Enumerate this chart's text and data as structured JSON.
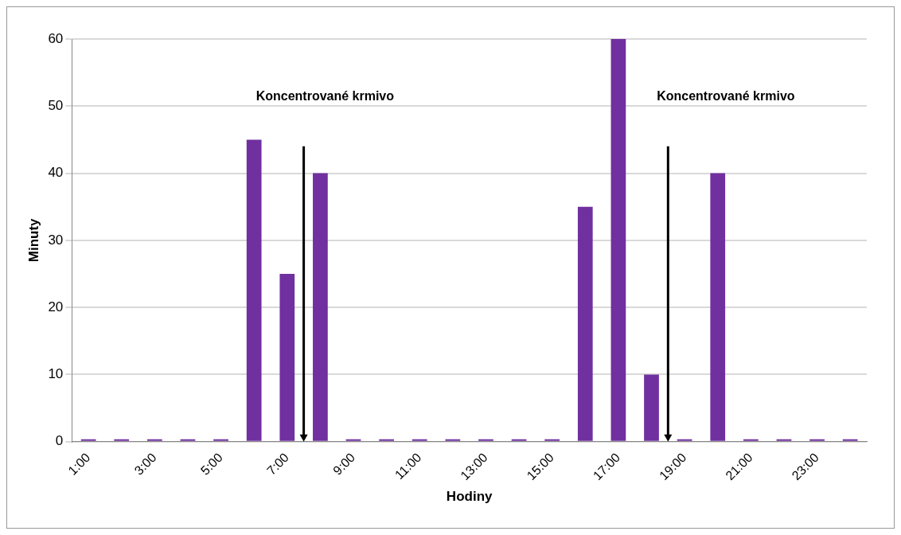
{
  "chart_data": {
    "type": "bar",
    "xlabel": "Hodiny",
    "ylabel": "Minuty",
    "categories": [
      "1:00",
      null,
      "3:00",
      null,
      "5:00",
      null,
      "7:00",
      null,
      "9:00",
      null,
      "11:00",
      null,
      "13:00",
      null,
      "15:00",
      null,
      "17:00",
      null,
      "19:00",
      null,
      "21:00",
      null,
      "23:00",
      null
    ],
    "values": [
      0,
      0,
      0,
      0,
      0,
      45,
      25,
      40,
      0,
      0,
      0,
      0,
      0,
      0,
      0,
      35,
      60,
      10,
      0,
      40,
      0,
      0,
      0,
      0
    ],
    "color": "#7030a0",
    "ylim": [
      0,
      60
    ],
    "yticks": [
      0,
      10,
      20,
      30,
      40,
      50,
      60
    ],
    "grid": "y",
    "legend": false,
    "annotations": [
      "Koncentrované krmivo",
      "Koncentrované krmivo"
    ]
  }
}
